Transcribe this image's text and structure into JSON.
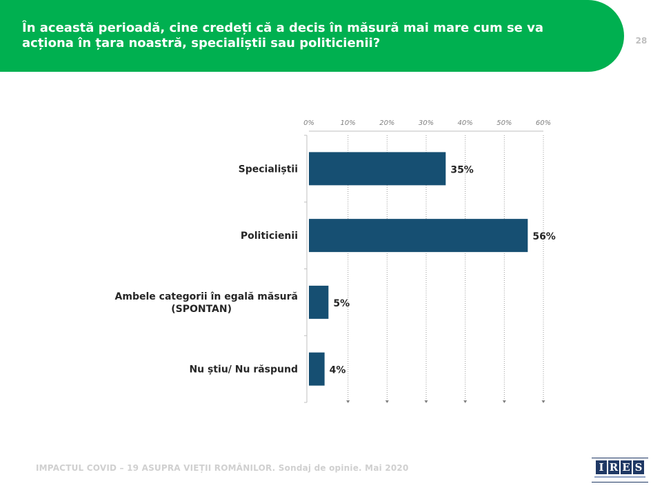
{
  "header": {
    "title": "În această perioadă, cine credeți că a decis în măsură mai mare cum se va acționa în țara noastră, specialiștii sau politicienii?",
    "page_number": "28",
    "band_color": "#00b050"
  },
  "footer": {
    "text": "IMPACTUL COVID – 19 ASUPRA VIEȚII ROMÂNILOR. Sondaj de opinie. Mai 2020"
  },
  "logo": {
    "letters": [
      "I",
      "R",
      "E",
      "S"
    ],
    "color": "#1f3864"
  },
  "chart_data": {
    "type": "bar",
    "orientation": "horizontal",
    "categories": [
      "Specialiștii",
      "Politicienii",
      "Ambele categorii în egală măsură (SPONTAN)",
      "Nu știu/ Nu răspund"
    ],
    "values": [
      35,
      56,
      5,
      4
    ],
    "value_labels": [
      "35%",
      "56%",
      "5%",
      "4%"
    ],
    "xlim": [
      0,
      60
    ],
    "x_ticks": [
      "0%",
      "10%",
      "20%",
      "30%",
      "40%",
      "50%",
      "60%"
    ],
    "x_axis_position": "top",
    "grid": "vertical dotted",
    "bar_color": "#164f72",
    "title": "",
    "xlabel": "",
    "ylabel": ""
  }
}
